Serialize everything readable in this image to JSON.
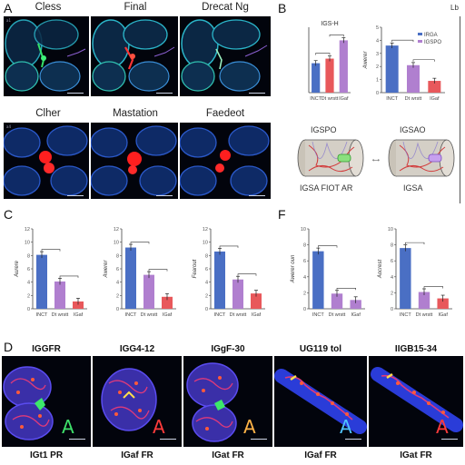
{
  "panel_letters": {
    "a": "A",
    "b": "B",
    "c": "C",
    "d": "D",
    "f": "F"
  },
  "right_edge_label": "Lb",
  "panelA": {
    "titles": [
      "Cless",
      "Final",
      "Drecat Ng",
      "Clher",
      "Mastation",
      "Faedeot"
    ]
  },
  "panelB": {
    "left_chart_title": "IGS-H",
    "labels": {
      "cyl_left": "IGSPO",
      "cyl_right": "IGSAO",
      "bottom_left": "IGSA FIOT AR",
      "bottom_right": "IGSA"
    },
    "arrow_glyph": "⟷"
  },
  "panelD": {
    "titles": [
      "IGGFR",
      "IGG4-12",
      "IGgF-30",
      "UG119 tol",
      "IIGB15-34"
    ],
    "footers": [
      "IGt1 PR",
      "IGaf FR",
      "IGat FR",
      "IGaf FR",
      "IGat FR"
    ],
    "letters": [
      "A",
      "A",
      "A",
      "A",
      "A"
    ],
    "letter_colors": [
      "#3ee06a",
      "#ff3b3b",
      "#ffb347",
      "#4fc3ff",
      "#ff3b3b"
    ]
  },
  "colors": {
    "blue": "#4a6fc4",
    "purple": "#b07fcf",
    "red": "#e8585b"
  },
  "chart_data": [
    {
      "id": "B1",
      "type": "bar",
      "categories": [
        "INCT",
        "Dt wrstt",
        "IGaf"
      ],
      "values": [
        0.45,
        0.52,
        0.8
      ],
      "colors": [
        "#4a6fc4",
        "#e8585b",
        "#b07fcf"
      ],
      "title": "IGS-H",
      "ylabel": "",
      "ylim": [
        0,
        1
      ],
      "yticks": []
    },
    {
      "id": "B2",
      "type": "bar",
      "categories": [
        "INCT",
        "Dt wrstt",
        "IGaf"
      ],
      "values": [
        3.6,
        2.1,
        0.9
      ],
      "colors": [
        "#4a6fc4",
        "#b07fcf",
        "#e8585b"
      ],
      "ylabel": "Awerer",
      "ylim": [
        0,
        5
      ],
      "yticks": [
        "0",
        "1",
        "2",
        "3",
        "4",
        "5"
      ],
      "legend": [
        "IRGA",
        "IGSPO"
      ]
    },
    {
      "id": "C1",
      "type": "bar",
      "categories": [
        "INCT",
        "Dt wrstt",
        "IGaf"
      ],
      "values": [
        8.1,
        4.1,
        1.1
      ],
      "colors": [
        "#4a6fc4",
        "#b07fcf",
        "#e8585b"
      ],
      "ylabel": "Aurere",
      "ylim": [
        0,
        12
      ],
      "yticks": [
        "0",
        "2",
        "4",
        "6",
        "8",
        "10",
        "12"
      ]
    },
    {
      "id": "C2",
      "type": "bar",
      "categories": [
        "INCT",
        "Dt wrstt",
        "IGaf"
      ],
      "values": [
        9.2,
        5.1,
        1.8
      ],
      "colors": [
        "#4a6fc4",
        "#b07fcf",
        "#e8585b"
      ],
      "ylabel": "Awerer",
      "ylim": [
        0,
        12
      ],
      "yticks": [
        "0",
        "2",
        "4",
        "6",
        "8",
        "10",
        "12"
      ]
    },
    {
      "id": "C3",
      "type": "bar",
      "categories": [
        "INCT",
        "Dt wrstt",
        "IGaf"
      ],
      "values": [
        8.6,
        4.4,
        2.3
      ],
      "colors": [
        "#4a6fc4",
        "#b07fcf",
        "#e8585b"
      ],
      "ylabel": "Fearout",
      "ylim": [
        0,
        12
      ],
      "yticks": [
        "0",
        "2",
        "4",
        "6",
        "8",
        "10",
        "12"
      ]
    },
    {
      "id": "F1",
      "type": "bar",
      "categories": [
        "INCT",
        "Dt wrstt",
        "IGaf"
      ],
      "values": [
        7.2,
        1.9,
        1.1
      ],
      "colors": [
        "#4a6fc4",
        "#b07fcf",
        "#b07fcf"
      ],
      "ylabel": "Awerer oun",
      "ylim": [
        0,
        10
      ],
      "yticks": [
        "0",
        "2",
        "4",
        "6",
        "8",
        "10"
      ]
    },
    {
      "id": "F2",
      "type": "bar",
      "categories": [
        "INCT",
        "Dt wrstt",
        "IGaf"
      ],
      "values": [
        7.6,
        2.1,
        1.3
      ],
      "colors": [
        "#4a6fc4",
        "#b07fcf",
        "#e8585b"
      ],
      "ylabel": "Aocrest",
      "ylim": [
        0,
        10
      ],
      "yticks": [
        "0",
        "2",
        "4",
        "6",
        "8",
        "10"
      ]
    }
  ]
}
